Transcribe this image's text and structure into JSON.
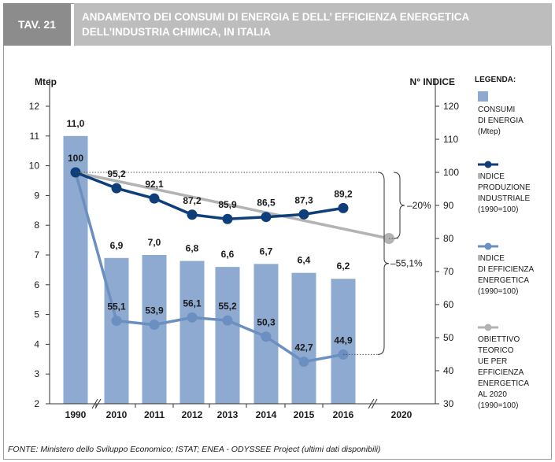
{
  "header": {
    "tag": "TAV. 21",
    "title": "ANDAMENTO DEI CONSUMI DI ENERGIA E DELL’ EFFICIENZA ENERGETICA DELL’INDUSTRIA CHIMICA, IN ITALIA"
  },
  "legend": {
    "title": "LEGENDA:",
    "items": [
      {
        "label": "CONSUMI\nDI ENERGIA\n(Mtep)",
        "color": "#8eaad0"
      },
      {
        "label": "INDICE\nPRODUZIONE\nINDUSTRIALE\n(1990=100)",
        "color": "#0f3f7a"
      },
      {
        "label": "INDICE\nDI EFFICIENZA\nENERGETICA\n(1990=100)",
        "color": "#6b8fc0"
      },
      {
        "label": "OBIETTIVO\nTEORICO\nUE PER EFFICIENZA\nENERGETICA\nAL 2020\n(1990=100)",
        "color": "#b3b3b3"
      }
    ]
  },
  "chart_data": {
    "type": "bar",
    "categories": [
      "1990",
      "2010",
      "2011",
      "2012",
      "2013",
      "2014",
      "2015",
      "2016",
      "2020"
    ],
    "ylabel_left": "Mtep",
    "ylabel_right": "N° INDICE",
    "ylim_left": [
      2,
      12
    ],
    "ylim_right": [
      30,
      120
    ],
    "yticks_left": [
      2,
      3,
      4,
      5,
      6,
      7,
      8,
      9,
      10,
      11,
      12
    ],
    "yticks_right": [
      30,
      40,
      50,
      60,
      70,
      80,
      90,
      100,
      110,
      120
    ],
    "series": [
      {
        "name": "Consumi di energia (Mtep)",
        "axis": "left",
        "type": "bar",
        "values": [
          11.0,
          6.9,
          7.0,
          6.8,
          6.6,
          6.7,
          6.4,
          6.2,
          null
        ],
        "labels": [
          "11,0",
          "6,9",
          "7,0",
          "6,8",
          "6,6",
          "6,7",
          "6,4",
          "6,2",
          ""
        ]
      },
      {
        "name": "Indice produzione industriale (1990=100)",
        "axis": "right",
        "type": "line",
        "values": [
          100,
          95.2,
          92.1,
          87.2,
          85.9,
          86.5,
          87.3,
          89.2,
          null
        ],
        "labels": [
          "100",
          "95,2",
          "92,1",
          "87,2",
          "85,9",
          "86,5",
          "87,3",
          "89,2",
          ""
        ]
      },
      {
        "name": "Indice di efficienza energetica (1990=100)",
        "axis": "right",
        "type": "line",
        "values": [
          100,
          55.1,
          53.9,
          56.1,
          55.2,
          50.3,
          42.7,
          44.9,
          null
        ],
        "labels": [
          "",
          "55,1",
          "53,9",
          "56,1",
          "55,2",
          "50,3",
          "42,7",
          "44,9",
          ""
        ]
      },
      {
        "name": "Obiettivo teorico UE per efficienza energetica al 2020 (1990=100)",
        "axis": "right",
        "type": "line",
        "points": [
          {
            "x": "1990",
            "y": 100
          },
          {
            "x": "2020",
            "y": 80
          }
        ]
      }
    ],
    "annotations": [
      "–20%",
      "–55,1%"
    ]
  },
  "footer": "FONTE: Ministero dello Sviluppo Economico; ISTAT; ENEA - ODYSSEE Project (ultimi dati disponibili)"
}
